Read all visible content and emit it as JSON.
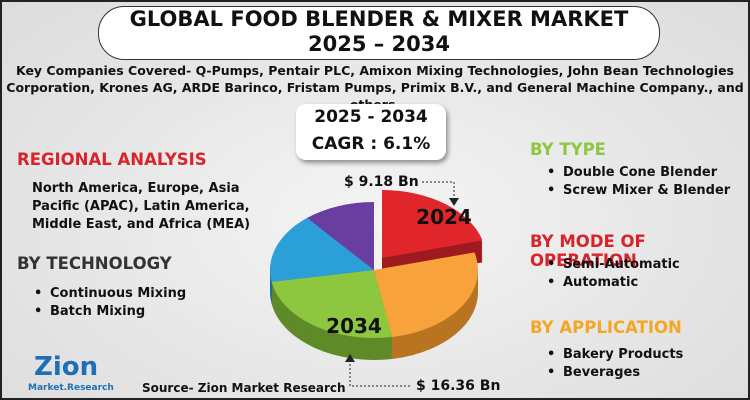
{
  "header": {
    "title": "GLOBAL FOOD BLENDER & MIXER MARKET",
    "period": "2025 – 2034",
    "companies": [
      "Key Companies Covered- Q-Pumps, Pentair PLC, Amixon Mixing Technologies, John Bean Technologies",
      "Corporation, Krones AG, ARDE Barinco, Fristam Pumps, Primix B.V., and General Machine Company., and others."
    ]
  },
  "highlight": {
    "period": "2025 - 2034",
    "cagr": "CAGR : 6.1%"
  },
  "pie": {
    "year_start": "2024",
    "year_end": "2034",
    "value_start": "$ 9.18 Bn",
    "value_end": "$ 16.36 Bn"
  },
  "left": {
    "regional_title": "REGIONAL ANALYSIS",
    "regional_text": "North America, Europe, Asia Pacific (APAC), Latin America, Middle East, and Africa (MEA)",
    "technology_title": "BY TECHNOLOGY",
    "technology_items": [
      "Continuous Mixing",
      "Batch Mixing"
    ]
  },
  "right": {
    "type_title": "BY TYPE",
    "type_items": [
      "Double Cone Blender",
      "Screw Mixer & Blender"
    ],
    "mode_title": "BY MODE OF OPERATION",
    "mode_items": [
      "Semi-Automatic",
      "Automatic"
    ],
    "application_title": "BY APPLICATION",
    "application_items": [
      "Bakery Products",
      "Beverages"
    ]
  },
  "footer": {
    "logo_name": "Zion",
    "logo_sub": "Market.Research",
    "source": "Source- Zion Market Research"
  }
}
